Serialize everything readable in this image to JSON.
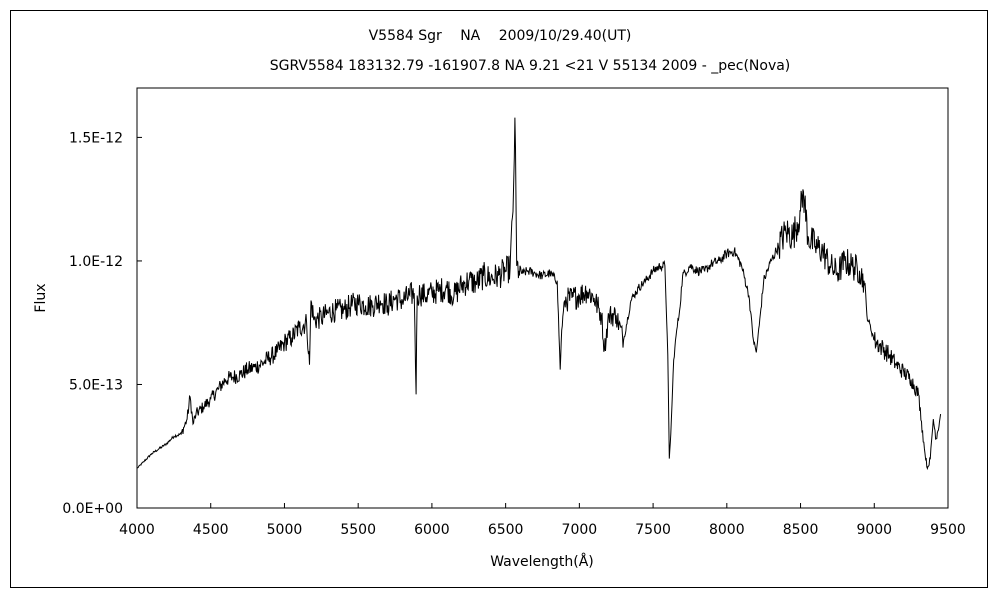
{
  "chart_data": {
    "type": "line",
    "title": "V5584 Sgr　 NA　 2009/10/29.40(UT)",
    "subtitle": "SGRV5584 183132.79 -161907.8 NA 9.21 <21 V 55134 2009 - _pec(Nova)",
    "xlabel": "Wavelength(Å)",
    "ylabel": "Flux",
    "xlim": [
      4000,
      9500
    ],
    "ylim": [
      0,
      1.7e-12
    ],
    "x_ticks": [
      4000,
      4500,
      5000,
      5500,
      6000,
      6500,
      7000,
      7500,
      8000,
      8500,
      9000,
      9500
    ],
    "x_tick_labels": [
      "4000",
      "4500",
      "5000",
      "5500",
      "6000",
      "6500",
      "7000",
      "7500",
      "8000",
      "8500",
      "9000",
      "9500"
    ],
    "y_ticks": [
      0,
      5e-13,
      1e-12,
      1.5e-12
    ],
    "y_tick_labels": [
      "0.0E+00",
      "5.0E-13",
      "1.0E-12",
      "1.5E-12"
    ],
    "grid": false,
    "line_color": "#000000",
    "series": [
      {
        "x": [
          4000,
          4050,
          4100,
          4150,
          4200,
          4250,
          4300,
          4340,
          4360,
          4380,
          4400,
          4450,
          4500,
          4550,
          4600,
          4650,
          4700,
          4750,
          4800,
          4861,
          4900,
          4950,
          5000,
          5050,
          5100,
          5150,
          5170,
          5180,
          5200,
          5250,
          5300,
          5350,
          5400,
          5450,
          5500,
          5550,
          5600,
          5650,
          5700,
          5750,
          5800,
          5850,
          5880,
          5893,
          5900,
          5920,
          5950,
          6000,
          6050,
          6100,
          6150,
          6200,
          6250,
          6300,
          6350,
          6400,
          6450,
          6500,
          6530,
          6550,
          6563,
          6575,
          6590,
          6620,
          6650,
          6700,
          6750,
          6800,
          6850,
          6870,
          6880,
          6900,
          6950,
          7000,
          7050,
          7100,
          7150,
          7170,
          7200,
          7250,
          7300,
          7350,
          7400,
          7450,
          7500,
          7550,
          7580,
          7600,
          7610,
          7620,
          7640,
          7660,
          7680,
          7700,
          7750,
          7800,
          7850,
          7900,
          7950,
          8000,
          8050,
          8100,
          8150,
          8180,
          8200,
          8220,
          8250,
          8300,
          8350,
          8400,
          8450,
          8500,
          8520,
          8550,
          8600,
          8650,
          8700,
          8750,
          8800,
          8850,
          8900,
          8930,
          8950,
          9000,
          9050,
          9100,
          9150,
          9200,
          9250,
          9300,
          9320,
          9340,
          9360,
          9380,
          9400,
          9420,
          9450
        ],
        "y": [
          1.6e-13,
          1.9e-13,
          2.2e-13,
          2.4e-13,
          2.6e-13,
          2.9e-13,
          3e-13,
          3.6e-13,
          4.5e-13,
          3.4e-13,
          3.8e-13,
          4.1e-13,
          4.4e-13,
          4.8e-13,
          5.2e-13,
          5.3e-13,
          5.4e-13,
          5.6e-13,
          5.7e-13,
          5.9e-13,
          6.1e-13,
          6.3e-13,
          6.7e-13,
          6.9e-13,
          7.3e-13,
          7.5e-13,
          5.8e-13,
          8.4e-13,
          7.6e-13,
          7.7e-13,
          7.9e-13,
          8e-13,
          8e-13,
          8.2e-13,
          8.3e-13,
          8.2e-13,
          8.2e-13,
          8.4e-13,
          8.2e-13,
          8.5e-13,
          8.4e-13,
          8.6e-13,
          8.7e-13,
          4.6e-13,
          8.6e-13,
          8.7e-13,
          8.6e-13,
          8.7e-13,
          8.8e-13,
          8.9e-13,
          8.6e-13,
          9e-13,
          9.2e-13,
          9.1e-13,
          9.4e-13,
          9.3e-13,
          9.4e-13,
          9.6e-13,
          9.7e-13,
          1.2e-12,
          1.58e-12,
          9.8e-13,
          9.6e-13,
          9.5e-13,
          9.6e-13,
          9.5e-13,
          9.4e-13,
          9.5e-13,
          9.2e-13,
          5.6e-13,
          7.2e-13,
          8.4e-13,
          8.5e-13,
          8.6e-13,
          8.8e-13,
          8.5e-13,
          7.8e-13,
          6.4e-13,
          7.8e-13,
          7.8e-13,
          6.8e-13,
          8.4e-13,
          8.9e-13,
          9.2e-13,
          9.6e-13,
          9.8e-13,
          9.8e-13,
          6.2e-13,
          2e-13,
          3e-13,
          6e-13,
          7.2e-13,
          8e-13,
          9.4e-13,
          9.8e-13,
          9.6e-13,
          9.6e-13,
          9.9e-13,
          1e-12,
          1.03e-12,
          1.04e-12,
          9.8e-13,
          8.6e-13,
          6.8e-13,
          6.3e-13,
          7.4e-13,
          9.2e-13,
          1e-12,
          1.06e-12,
          1.12e-12,
          1.1e-12,
          1.2e-12,
          1.28e-12,
          1.1e-12,
          1.06e-12,
          1.04e-12,
          9.8e-13,
          9.5e-13,
          1e-12,
          9.8e-13,
          9.6e-13,
          9.2e-13,
          7.8e-13,
          6.8e-13,
          6.5e-13,
          6.2e-13,
          5.8e-13,
          5.5e-13,
          5.2e-13,
          4.6e-13,
          3.5e-13,
          2.4e-13,
          1.6e-13,
          2e-13,
          3.6e-13,
          2.8e-13,
          3.8e-13
        ]
      }
    ]
  }
}
